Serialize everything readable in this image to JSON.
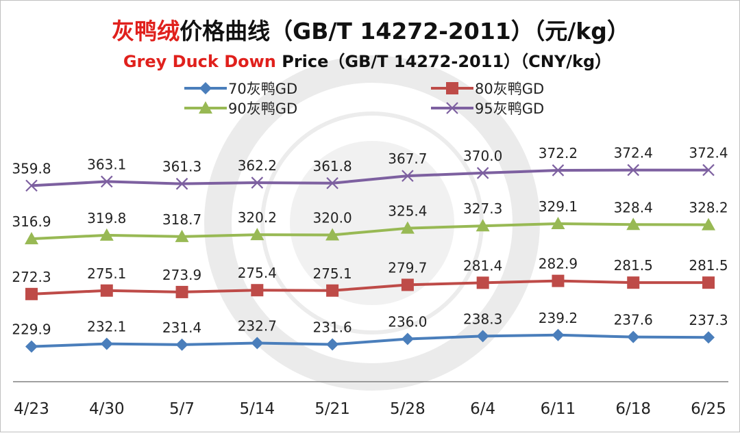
{
  "chart_data": {
    "type": "line",
    "title_highlight": "灰鸭绒",
    "title_rest": "价格曲线（GB/T 14272-2011）（元/kg）",
    "subtitle_highlight": "Grey Duck Down",
    "subtitle_rest": " Price（GB/T 14272-2011）（CNY/kg）",
    "categories": [
      "4/23",
      "4/30",
      "5/7",
      "5/14",
      "5/21",
      "5/28",
      "6/4",
      "6/11",
      "6/18",
      "6/25"
    ],
    "series": [
      {
        "name": "70灰鸭GD",
        "color": "#4a7ebb",
        "marker": "diamond",
        "values": [
          229.9,
          232.1,
          231.4,
          232.7,
          231.6,
          236.0,
          238.3,
          239.2,
          237.6,
          237.3
        ],
        "labels": [
          "229.9",
          "232.1",
          "231.4",
          "232.7",
          "231.6",
          "236.0",
          "238.3",
          "239.2",
          "237.6",
          "237.3"
        ]
      },
      {
        "name": "80灰鸭GD",
        "color": "#be4b48",
        "marker": "square",
        "values": [
          272.3,
          275.1,
          273.9,
          275.4,
          275.1,
          279.7,
          281.4,
          282.9,
          281.5,
          281.5
        ],
        "labels": [
          "272.3",
          "275.1",
          "273.9",
          "275.4",
          "275.1",
          "279.7",
          "281.4",
          "282.9",
          "281.5",
          "281.5"
        ]
      },
      {
        "name": "90灰鸭GD",
        "color": "#98b954",
        "marker": "triangle",
        "values": [
          316.9,
          319.8,
          318.7,
          320.2,
          320.0,
          325.4,
          327.3,
          329.1,
          328.4,
          328.2
        ],
        "labels": [
          "316.9",
          "319.8",
          "318.7",
          "320.2",
          "320.0",
          "325.4",
          "327.3",
          "329.1",
          "328.4",
          "328.2"
        ]
      },
      {
        "name": "95灰鸭GD",
        "color": "#7d60a0",
        "marker": "x",
        "values": [
          359.8,
          363.1,
          361.3,
          362.2,
          361.8,
          367.7,
          370.0,
          372.2,
          372.4,
          372.4
        ],
        "labels": [
          "359.8",
          "363.1",
          "361.3",
          "362.2",
          "361.8",
          "367.7",
          "370.0",
          "372.2",
          "372.4",
          "372.4"
        ]
      }
    ],
    "ylim": [
      200,
      400
    ],
    "grid": false,
    "legend_position": "top"
  },
  "colors": {
    "title_highlight": "#e0201c",
    "title_text": "#111111",
    "axis_line": "#808080",
    "watermark": "#e6e6e6"
  },
  "icons": {
    "watermark": "association-seal-watermark"
  }
}
